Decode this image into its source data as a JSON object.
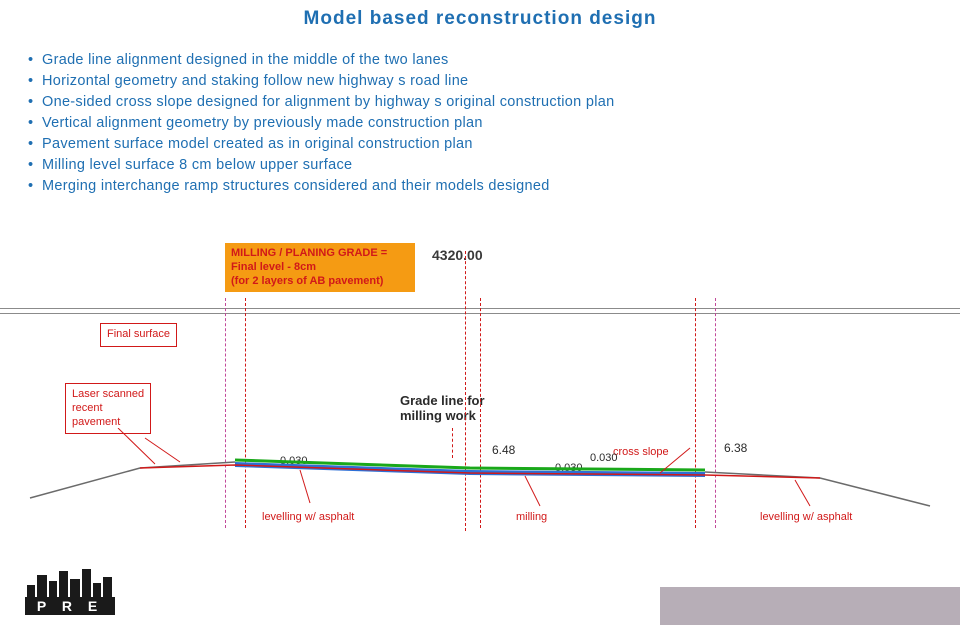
{
  "title": {
    "text": "Model based reconstruction design",
    "color": "#1f6fb2"
  },
  "bullets": {
    "color": "#1f6fb2",
    "items": [
      "Grade line alignment designed in the middle of the two lanes",
      "Horizontal geometry and staking follow new highway s road line",
      "One-sided cross slope designed for alignment by highway s original construction plan",
      "Vertical alignment geometry by previously made construction plan",
      "Pavement surface model created as in original construction plan",
      "Milling level surface 8 cm below upper surface",
      "Merging interchange ramp structures considered and their models designed"
    ]
  },
  "diagram": {
    "station_label": "4320.00",
    "station_color": "#3a3a3a",
    "milling_box": {
      "bg": "#f59b13",
      "text_color": "#d11919",
      "line1": "MILLING / PLANING GRADE =",
      "line2": "Final level - 8cm",
      "line3": "(for 2 layers of AB pavement)"
    },
    "final_surface_label": {
      "text": "Final surface",
      "color": "#d11919",
      "border": "#d11919"
    },
    "laser_label": {
      "text1": "Laser scanned",
      "text2": "recent",
      "text3": "pavement",
      "color": "#d11919",
      "border": "#d11919"
    },
    "grade_line_label": {
      "text1": "Grade line for",
      "text2": "milling work",
      "color": "#2a2a2a"
    },
    "cross_slope_label": {
      "text": "cross slope",
      "color": "#d11919"
    },
    "levelling_left": {
      "text": "levelling w/ asphalt",
      "color": "#d11919"
    },
    "milling_label": {
      "text": "milling",
      "color": "#d11919"
    },
    "levelling_right": {
      "text": "levelling w/ asphalt",
      "color": "#d11919"
    },
    "slope_values": {
      "a": "0.030",
      "b": "0.030",
      "c": "0.030"
    },
    "width_values": {
      "left": "6.48",
      "right": "6.38"
    },
    "guideline_color": "#8b8b8b",
    "dash_outer_color": "#c24a9a",
    "dash_inner_color": "#d11919",
    "road_top_color": "#1aa81a",
    "road_fill_color": "#2d6fd6",
    "road_edge_color": "#d11919",
    "shoulder_color": "#6b6b6b"
  },
  "footer_bar_color": "#b7aeb7",
  "logo": {
    "fill": "#1a1a1a",
    "letters": "P R E"
  }
}
